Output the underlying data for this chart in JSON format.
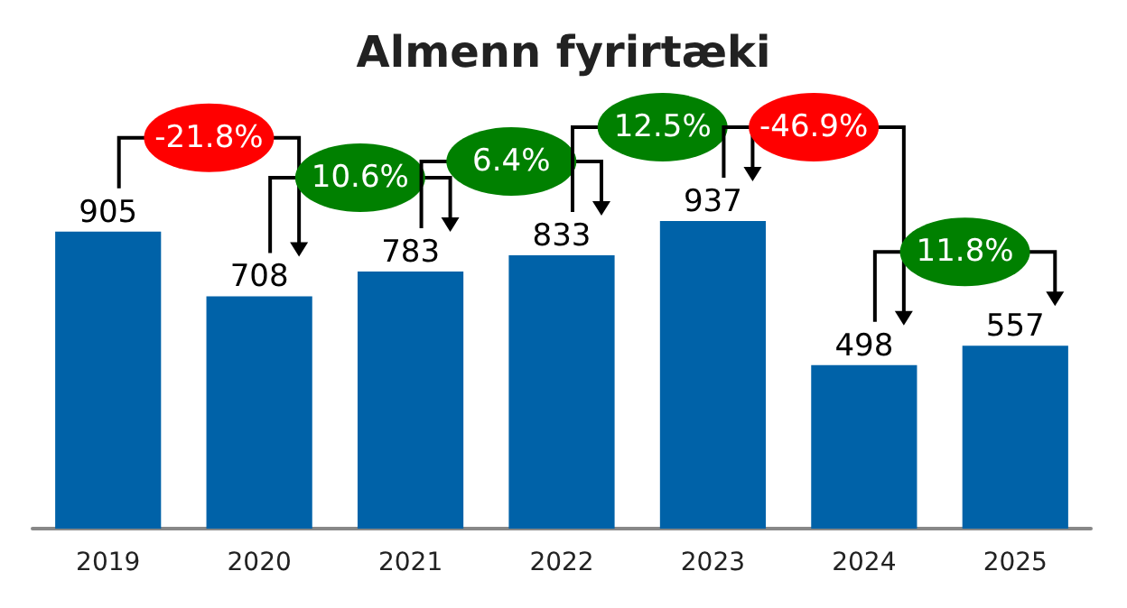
{
  "chart_data": {
    "type": "bar",
    "title": "Almenn fyrirtæki",
    "categories": [
      "2019",
      "2020",
      "2021",
      "2022",
      "2023",
      "2024",
      "2025"
    ],
    "values": [
      905,
      708,
      783,
      833,
      937,
      498,
      557
    ],
    "color": "#0062a8",
    "data_labels": true,
    "annotations": [
      "-21.8%",
      "10.6%",
      "6.4%",
      "12.5%",
      "-46.9%",
      "11.8%"
    ]
  }
}
